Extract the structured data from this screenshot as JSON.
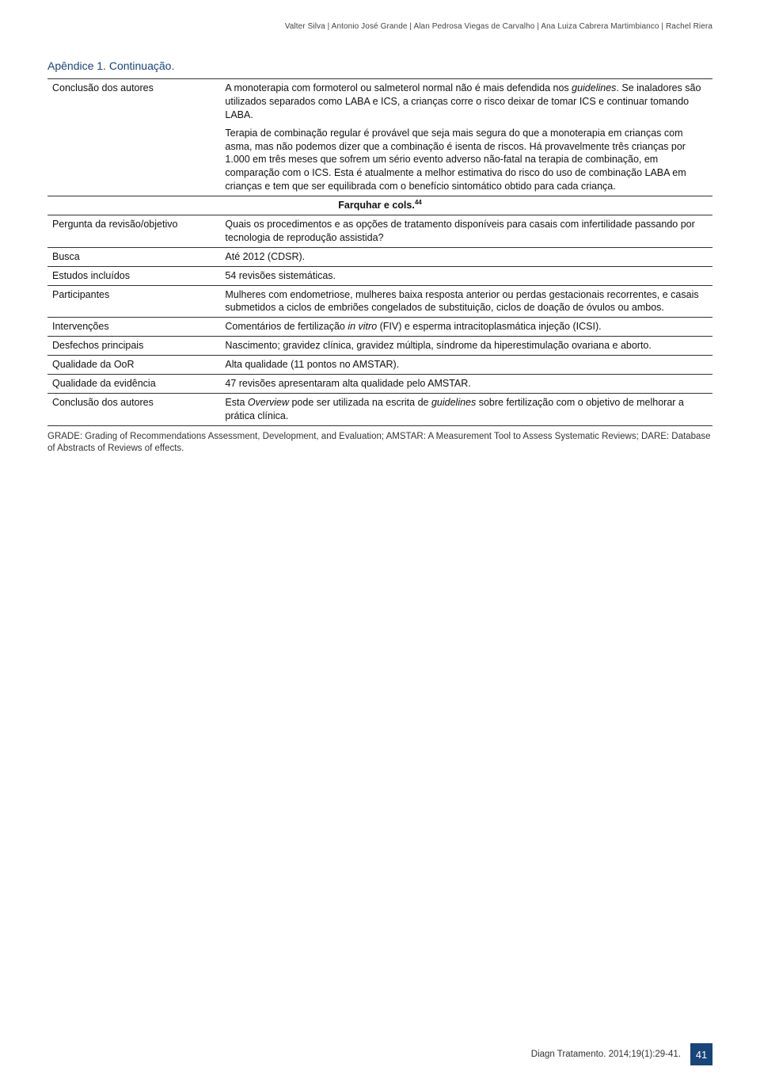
{
  "running_head": "Valter Silva | Antonio José Grande | Alan Pedrosa Viegas de Carvalho | Ana Luiza Cabrera Martimbianco | Rachel Riera",
  "appendix_title": "Apêndice 1. Continuação.",
  "colors": {
    "heading": "#17457a",
    "page_bg": "#17457a",
    "border": "#333333",
    "text": "#111111",
    "background": "#ffffff"
  },
  "rows": [
    {
      "label": "Conclusão dos autores",
      "value_html": "A monoterapia com formoterol ou salmeterol normal não é mais defendida nos <i>guidelines</i>. Se inaladores são utilizados separados como LABA e ICS, a crianças corre o risco deixar de tomar ICS e continuar tomando LABA.|||Terapia de combinação regular é provável que seja mais segura do que a monoterapia em crianças com asma, mas não podemos dizer que a combinação é isenta de riscos. Há provavelmente três crianças por 1.000 em três meses que sofrem um sério evento adverso não-fatal na terapia de combinação, em comparação com o ICS. Esta é atualmente a melhor estimativa do risco do uso de combinação LABA em crianças e tem que ser equilibrada com o benefício sintomático obtido para cada criança."
    },
    {
      "subhead_html": "Farquhar e cols.<sup>44</sup>"
    },
    {
      "label": "Pergunta da revisão/objetivo",
      "value_html": "Quais os procedimentos e as opções de tratamento disponíveis para casais com infertilidade passando por tecnologia de reprodução assistida?"
    },
    {
      "label": "Busca",
      "value_html": "Até 2012 (CDSR)."
    },
    {
      "label": "Estudos incluídos",
      "value_html": "54 revisões sistemáticas."
    },
    {
      "label": "Participantes",
      "value_html": "Mulheres com endometriose, mulheres baixa resposta anterior ou perdas gestacionais recorrentes, e casais submetidos a ciclos de embriões congelados de substituição, ciclos de doação de óvulos ou ambos."
    },
    {
      "label": "Intervenções",
      "value_html": "Comentários de fertilização <i>in vitro</i> (FIV) e esperma intracitoplasmática injeção (ICSI)."
    },
    {
      "label": "Desfechos principais",
      "value_html": "Nascimento; gravidez clínica, gravidez múltipla, síndrome da hiperestimulação ovariana e aborto."
    },
    {
      "label": "Qualidade da OoR",
      "value_html": "Alta qualidade (11 pontos no AMSTAR)."
    },
    {
      "label": "Qualidade da evidência",
      "value_html": "47 revisões apresentaram alta qualidade pelo AMSTAR."
    },
    {
      "label": "Conclusão dos autores",
      "value_html": "Esta <i>Overview</i> pode ser utilizada na escrita de <i>guidelines</i> sobre fertilização com o objetivo de melhorar a prática clínica."
    }
  ],
  "footnote": "GRADE: Grading of Recommendations Assessment, Development, and Evaluation; AMSTAR: A Measurement Tool to Assess Systematic Reviews; DARE: Database of Abstracts of Reviews of effects.",
  "citation": "Diagn Tratamento. 2014;19(1):29-41.",
  "page_number": "41"
}
